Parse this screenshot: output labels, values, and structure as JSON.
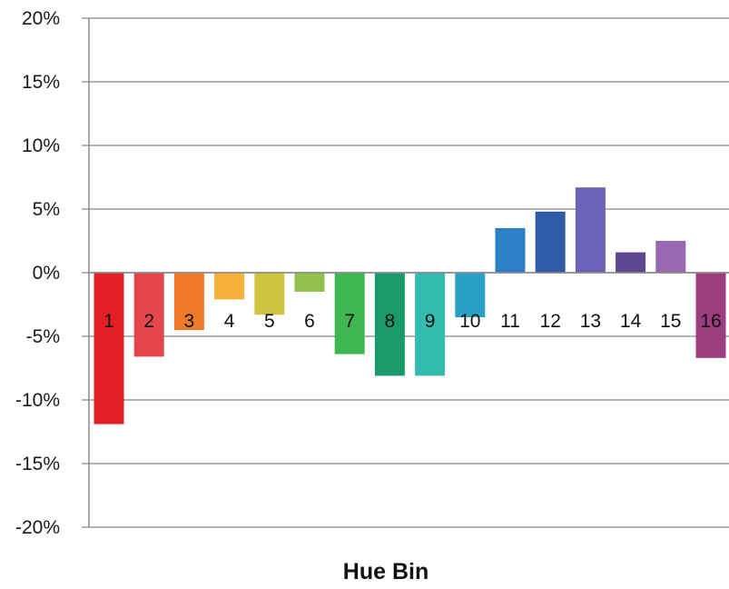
{
  "chart_data": {
    "type": "bar",
    "xlabel": "Hue Bin",
    "ylabel": "",
    "title": "",
    "ylim": [
      -20,
      20
    ],
    "yticks": [
      20,
      15,
      10,
      5,
      0,
      -5,
      -10,
      -15,
      -20
    ],
    "ytick_labels": [
      "20%",
      "15%",
      "10%",
      "5%",
      "0%",
      "-5%",
      "-10%",
      "-15%",
      "-20%"
    ],
    "categories": [
      "1",
      "2",
      "3",
      "4",
      "5",
      "6",
      "7",
      "8",
      "9",
      "10",
      "11",
      "12",
      "13",
      "14",
      "15",
      "16"
    ],
    "values": [
      -11.9,
      -6.6,
      -4.5,
      -2.1,
      -3.3,
      -1.5,
      -6.4,
      -8.1,
      -8.1,
      -3.5,
      3.5,
      4.8,
      6.7,
      1.6,
      2.5,
      -6.7
    ],
    "colors": [
      "#e31e24",
      "#e4474b",
      "#f27b2a",
      "#f7b13b",
      "#cfc440",
      "#92c24c",
      "#3db74f",
      "#1a9a6b",
      "#35bcb0",
      "#2aa0c8",
      "#2a7fc6",
      "#2f5ba8",
      "#6a62b6",
      "#5e4690",
      "#9a68b2",
      "#9c3d7e"
    ],
    "grid": true
  }
}
